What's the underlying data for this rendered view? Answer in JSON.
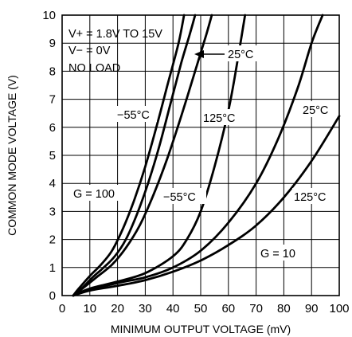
{
  "chart_data": {
    "type": "line",
    "title": "",
    "xlabel": "MINIMUM OUTPUT VOLTAGE (mV)",
    "ylabel": "COMMON MODE VOLTAGE (V)",
    "xlim": [
      0,
      100
    ],
    "ylim": [
      0,
      10
    ],
    "x_ticks": [
      "0",
      "10",
      "20",
      "30",
      "40",
      "50",
      "60",
      "70",
      "80",
      "90",
      "100"
    ],
    "y_ticks": [
      "0",
      "1",
      "2",
      "3",
      "4",
      "5",
      "6",
      "7",
      "8",
      "9",
      "10"
    ],
    "grid": true,
    "conditions": [
      "V+ = 1.8V TO 15V",
      "V− = 0V",
      "NO LOAD"
    ],
    "annotations": {
      "g100_m55": "−55°C",
      "g100_25": "25°C",
      "g100_125": "125°C",
      "g10_m55": "−55°C",
      "g10_25": "25°C",
      "g10_125": "125°C",
      "g100": "G = 100",
      "g10": "G = 10"
    },
    "series": [
      {
        "group": "G = 100",
        "temp": "−55°C",
        "points": [
          [
            4,
            0
          ],
          [
            6,
            0.25
          ],
          [
            10,
            0.7
          ],
          [
            14,
            1.1
          ],
          [
            18,
            1.6
          ],
          [
            22,
            2.4
          ],
          [
            26,
            3.4
          ],
          [
            30,
            4.6
          ],
          [
            34,
            6.0
          ],
          [
            38,
            7.5
          ],
          [
            42,
            9.0
          ],
          [
            44,
            10
          ]
        ]
      },
      {
        "group": "G = 100",
        "temp": "25°C",
        "points": [
          [
            4,
            0
          ],
          [
            7,
            0.25
          ],
          [
            11,
            0.65
          ],
          [
            15,
            1.0
          ],
          [
            19,
            1.4
          ],
          [
            23,
            2.0
          ],
          [
            27,
            2.9
          ],
          [
            31,
            4.0
          ],
          [
            35,
            5.3
          ],
          [
            39,
            6.8
          ],
          [
            43,
            8.3
          ],
          [
            46,
            9.3
          ],
          [
            48,
            10
          ]
        ]
      },
      {
        "group": "G = 100",
        "temp": "125°C",
        "points": [
          [
            4,
            0
          ],
          [
            8,
            0.3
          ],
          [
            13,
            0.7
          ],
          [
            18,
            1.1
          ],
          [
            23,
            1.7
          ],
          [
            28,
            2.5
          ],
          [
            33,
            3.6
          ],
          [
            38,
            4.9
          ],
          [
            43,
            6.4
          ],
          [
            48,
            8.0
          ],
          [
            52,
            9.3
          ],
          [
            54,
            10
          ]
        ]
      },
      {
        "group": "G = 10",
        "temp": "−55°C",
        "points": [
          [
            4,
            0
          ],
          [
            10,
            0.25
          ],
          [
            20,
            0.5
          ],
          [
            30,
            0.8
          ],
          [
            40,
            1.4
          ],
          [
            45,
            2.0
          ],
          [
            50,
            3.0
          ],
          [
            55,
            4.6
          ],
          [
            60,
            6.6
          ],
          [
            63,
            8.2
          ],
          [
            66,
            10
          ]
        ]
      },
      {
        "group": "G = 10",
        "temp": "25°C",
        "points": [
          [
            4,
            0
          ],
          [
            10,
            0.2
          ],
          [
            20,
            0.45
          ],
          [
            30,
            0.65
          ],
          [
            40,
            1.0
          ],
          [
            50,
            1.6
          ],
          [
            60,
            2.6
          ],
          [
            70,
            4.0
          ],
          [
            78,
            5.6
          ],
          [
            85,
            7.4
          ],
          [
            90,
            9.0
          ],
          [
            94,
            10
          ]
        ]
      },
      {
        "group": "G = 10",
        "temp": "125°C",
        "points": [
          [
            4,
            0
          ],
          [
            10,
            0.18
          ],
          [
            20,
            0.35
          ],
          [
            30,
            0.55
          ],
          [
            40,
            0.85
          ],
          [
            50,
            1.25
          ],
          [
            60,
            1.8
          ],
          [
            70,
            2.5
          ],
          [
            80,
            3.5
          ],
          [
            90,
            4.8
          ],
          [
            100,
            6.4
          ]
        ]
      }
    ]
  }
}
